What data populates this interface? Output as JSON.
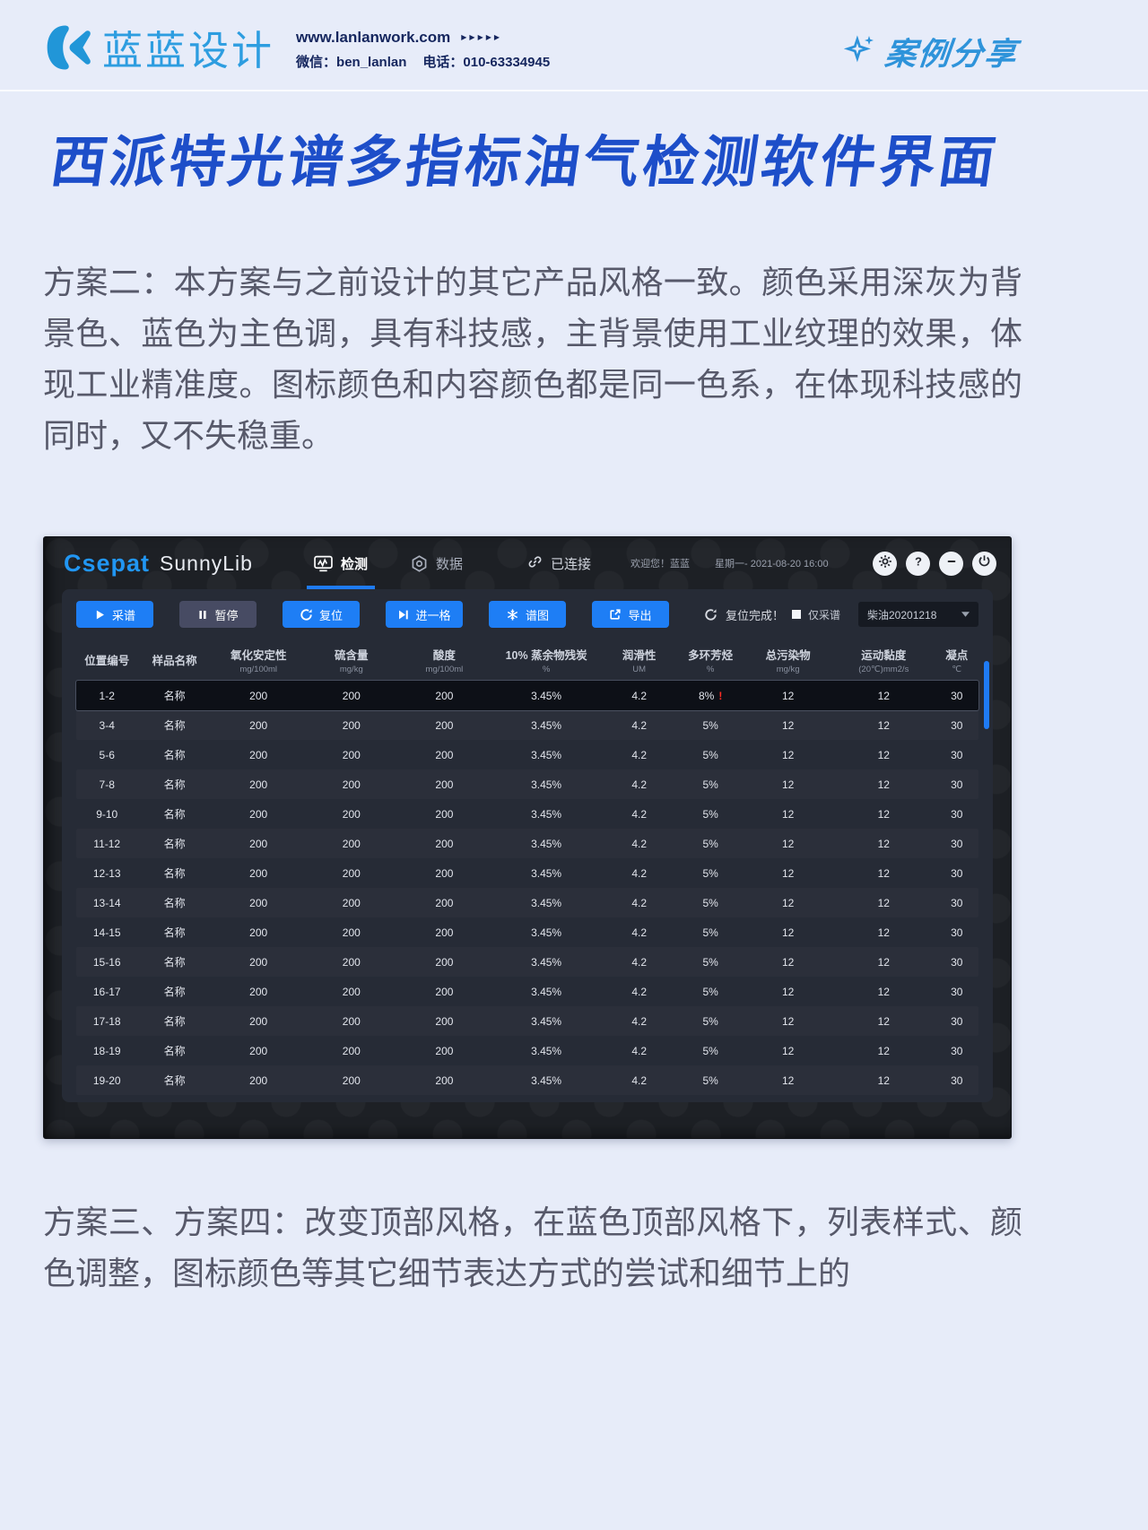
{
  "colors": {
    "page_bg": "#e7ecf9",
    "title_blue": "#1d4ec9",
    "logo_blue": "#2d9de0",
    "navy_text": "#15265e",
    "badge_blue": "#2e93da",
    "app_bg": "#1d2025",
    "panel_bg": "#262b36",
    "button_blue": "#1e7ef5",
    "pause_gray": "#474b63",
    "tab_underline": "#1f7bf4",
    "alert_red": "#ff2d23",
    "scrollbar_blue": "#1f7bf4"
  },
  "site_header": {
    "logo_text": "蓝蓝设计",
    "url": "www.lanlanwork.com",
    "arrows": "▶▶▶▶▶",
    "wechat_label": "微信：",
    "wechat_value": "ben_lanlan",
    "phone_label": "电话：",
    "phone_value": "010-63334945",
    "badge_label": "案例分享"
  },
  "article": {
    "title": "西派特光谱多指标油气检测软件界面",
    "paragraph_1": "方案二：本方案与之前设计的其它产品风格一致。颜色采用深灰为背景色、蓝色为主色调，具有科技感，主背景使用工业纹理的效果，体现工业精准度。图标颜色和内容颜色都是同一色系，在体现科技感的同时，又不失稳重。",
    "paragraph_2": "方案三、方案四：改变顶部风格，在蓝色顶部风格下，列表样式、颜色调整，图标颜色等其它细节表达方式的尝试和细节上的"
  },
  "app": {
    "brand_primary": "Csepat",
    "brand_secondary": "SunnyLib",
    "tabs": [
      {
        "label": "检测",
        "icon": "chart",
        "active": true
      },
      {
        "label": "数据",
        "icon": "hexagon",
        "active": false
      }
    ],
    "connection_status": "已连接",
    "welcome_text": "欢迎您！蓝蓝",
    "datetime_text": "星期一- 2021-08-20 16:00",
    "toolbar": {
      "buttons": [
        {
          "label": "采谱",
          "icon": "play",
          "variant": "primary"
        },
        {
          "label": "暂停",
          "icon": "pause",
          "variant": "muted"
        },
        {
          "label": "复位",
          "icon": "reset",
          "variant": "primary"
        },
        {
          "label": "进一格",
          "icon": "step",
          "variant": "primary"
        },
        {
          "label": "谱图",
          "icon": "snowflake",
          "variant": "primary"
        },
        {
          "label": "导出",
          "icon": "export",
          "variant": "primary"
        }
      ],
      "status_text": "复位完成！",
      "only_capture_label": "仅采谱",
      "sample_dropdown_value": "柴油20201218"
    },
    "table": {
      "columns": [
        {
          "name": "位置编号",
          "unit": ""
        },
        {
          "name": "样品名称",
          "unit": ""
        },
        {
          "name": "氧化安定性",
          "unit": "mg/100ml"
        },
        {
          "name": "硫含量",
          "unit": "mg/kg"
        },
        {
          "name": "酸度",
          "unit": "mg/100ml"
        },
        {
          "name": "10% 蒸余物残炭",
          "unit": "%"
        },
        {
          "name": "润滑性",
          "unit": "UM"
        },
        {
          "name": "多环芳烃",
          "unit": "%"
        },
        {
          "name": "总污染物",
          "unit": "mg/kg"
        },
        {
          "name": "运动黏度",
          "unit": "(20℃)mm2/s"
        },
        {
          "name": "凝点",
          "unit": "℃"
        }
      ],
      "rows": [
        {
          "position": "1-2",
          "sample": "名称",
          "values": [
            "200",
            "200",
            "200",
            "3.45%",
            "4.2",
            "8%",
            "12",
            "12",
            "30"
          ],
          "alert": true,
          "selected": true
        },
        {
          "position": "3-4",
          "sample": "名称",
          "values": [
            "200",
            "200",
            "200",
            "3.45%",
            "4.2",
            "5%",
            "12",
            "12",
            "30"
          ],
          "alert": false,
          "selected": false
        },
        {
          "position": "5-6",
          "sample": "名称",
          "values": [
            "200",
            "200",
            "200",
            "3.45%",
            "4.2",
            "5%",
            "12",
            "12",
            "30"
          ],
          "alert": false,
          "selected": false
        },
        {
          "position": "7-8",
          "sample": "名称",
          "values": [
            "200",
            "200",
            "200",
            "3.45%",
            "4.2",
            "5%",
            "12",
            "12",
            "30"
          ],
          "alert": false,
          "selected": false
        },
        {
          "position": "9-10",
          "sample": "名称",
          "values": [
            "200",
            "200",
            "200",
            "3.45%",
            "4.2",
            "5%",
            "12",
            "12",
            "30"
          ],
          "alert": false,
          "selected": false
        },
        {
          "position": "11-12",
          "sample": "名称",
          "values": [
            "200",
            "200",
            "200",
            "3.45%",
            "4.2",
            "5%",
            "12",
            "12",
            "30"
          ],
          "alert": false,
          "selected": false
        },
        {
          "position": "12-13",
          "sample": "名称",
          "values": [
            "200",
            "200",
            "200",
            "3.45%",
            "4.2",
            "5%",
            "12",
            "12",
            "30"
          ],
          "alert": false,
          "selected": false
        },
        {
          "position": "13-14",
          "sample": "名称",
          "values": [
            "200",
            "200",
            "200",
            "3.45%",
            "4.2",
            "5%",
            "12",
            "12",
            "30"
          ],
          "alert": false,
          "selected": false
        },
        {
          "position": "14-15",
          "sample": "名称",
          "values": [
            "200",
            "200",
            "200",
            "3.45%",
            "4.2",
            "5%",
            "12",
            "12",
            "30"
          ],
          "alert": false,
          "selected": false
        },
        {
          "position": "15-16",
          "sample": "名称",
          "values": [
            "200",
            "200",
            "200",
            "3.45%",
            "4.2",
            "5%",
            "12",
            "12",
            "30"
          ],
          "alert": false,
          "selected": false
        },
        {
          "position": "16-17",
          "sample": "名称",
          "values": [
            "200",
            "200",
            "200",
            "3.45%",
            "4.2",
            "5%",
            "12",
            "12",
            "30"
          ],
          "alert": false,
          "selected": false
        },
        {
          "position": "17-18",
          "sample": "名称",
          "values": [
            "200",
            "200",
            "200",
            "3.45%",
            "4.2",
            "5%",
            "12",
            "12",
            "30"
          ],
          "alert": false,
          "selected": false
        },
        {
          "position": "18-19",
          "sample": "名称",
          "values": [
            "200",
            "200",
            "200",
            "3.45%",
            "4.2",
            "5%",
            "12",
            "12",
            "30"
          ],
          "alert": false,
          "selected": false
        },
        {
          "position": "19-20",
          "sample": "名称",
          "values": [
            "200",
            "200",
            "200",
            "3.45%",
            "4.2",
            "5%",
            "12",
            "12",
            "30"
          ],
          "alert": false,
          "selected": false
        }
      ]
    }
  }
}
